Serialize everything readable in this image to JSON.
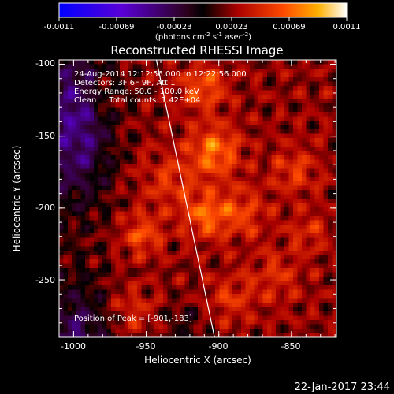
{
  "chart_data": {
    "type": "heatmap",
    "title": "Reconstructed RHESSI Image",
    "xlabel": "Heliocentric X (arcsec)",
    "ylabel": "Heliocentric Y (arcsec)",
    "xlim": [
      -1010,
      -819
    ],
    "ylim": [
      -290,
      -97
    ],
    "xticks": [
      -1000,
      -950,
      -900,
      -850
    ],
    "yticks": [
      -100,
      -150,
      -200,
      -250
    ],
    "colorbar": {
      "tick_labels": [
        "-0.0011",
        "-0.00069",
        "-0.00023",
        "0.00023",
        "0.00069",
        "0.0011"
      ],
      "range": [
        -0.0011,
        0.0011
      ],
      "unit_base": "(photons cm",
      "unit_sup1": "-2",
      "unit_mid": " s",
      "unit_sup2": "-1",
      "unit_end": " asec",
      "unit_sup3": "-2",
      "unit_close": ")"
    },
    "annotations": [
      "24-Aug-2014 12:12:56.000 to 12:22:56.000",
      "Detectors: 3F 6F 9F, Att 1",
      "Energy Range: 50.0 - 100.0 keV",
      "Clean     Total counts: 1.42E+04"
    ],
    "peak_label": "Position of Peak = [-901,-183]",
    "limb_line": {
      "x": [
        -943,
        -903
      ],
      "y": [
        -97,
        -290
      ]
    }
  },
  "footer": {
    "date": "22-Jan-2017 23:44"
  }
}
